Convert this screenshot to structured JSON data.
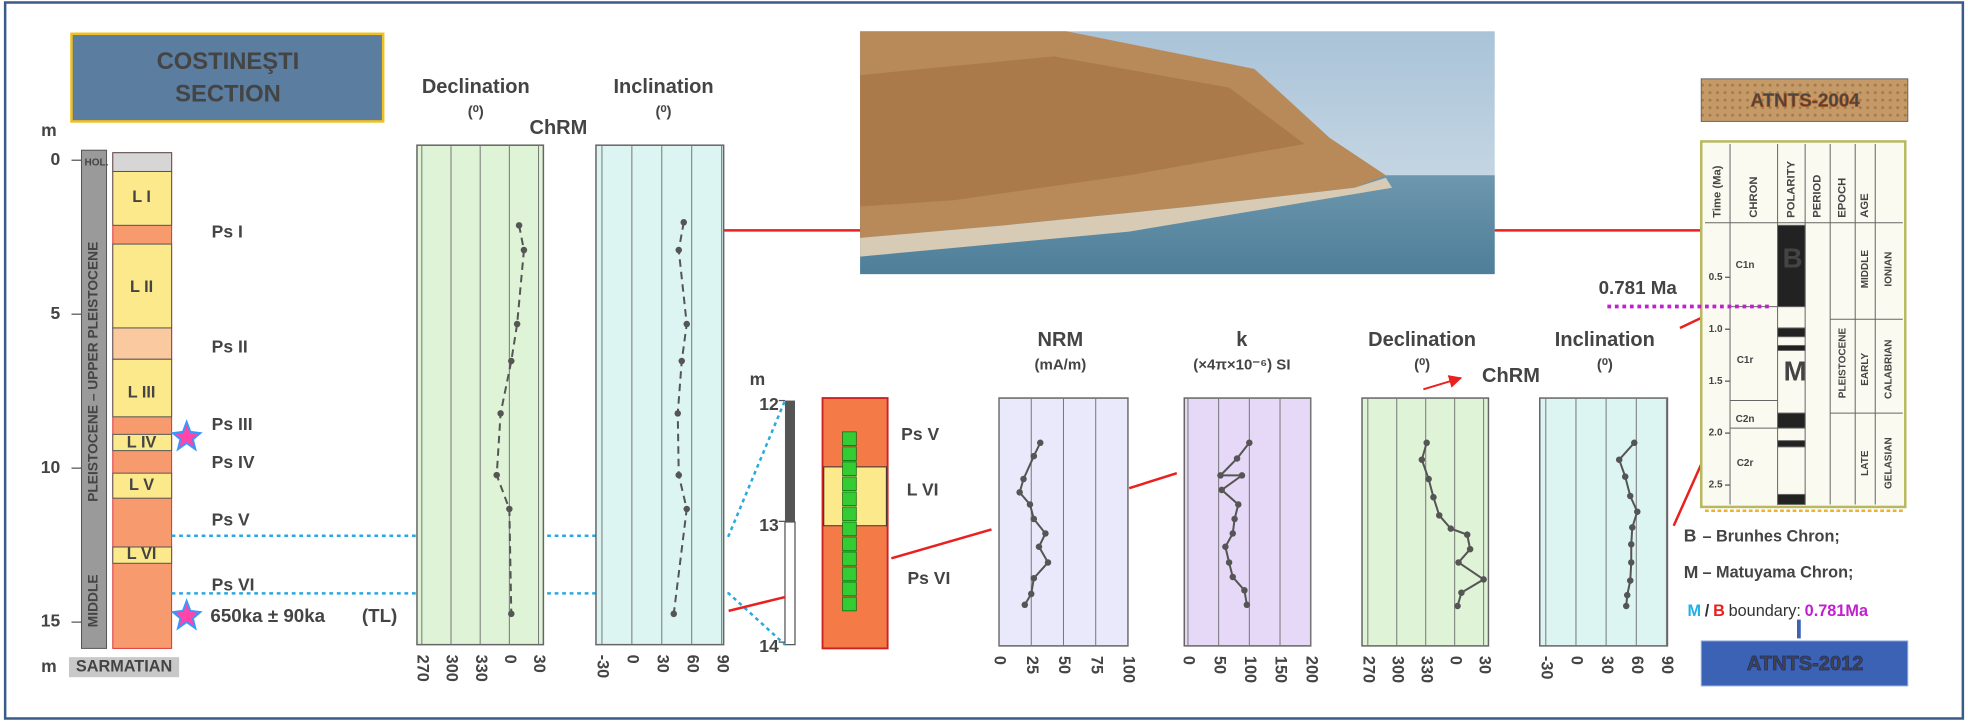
{
  "section": {
    "title": [
      "COSTINEŞTI",
      "SECTION"
    ],
    "depth_unit": "m",
    "depth_ticks": [
      0,
      5,
      10,
      15
    ],
    "epochs": [
      "HOL.",
      "MIDDLE",
      "PLEISTOCENE – UPPER PLEISTOCENE"
    ],
    "layers": [
      "L I",
      "L II",
      "L III",
      "L IV",
      "L V",
      "L VI"
    ],
    "paleosols": [
      "Ps I",
      "Ps II",
      "Ps III",
      "Ps IV",
      "Ps V",
      "Ps VI"
    ],
    "base": "SARMATIAN",
    "age": "650ka ± 90ka",
    "age_method": "(TL)"
  },
  "detail": {
    "depth_unit": "m",
    "depth_ticks": [
      12,
      13,
      14
    ],
    "labels": [
      "Ps V",
      "L VI",
      "Ps VI"
    ]
  },
  "chart_data": [
    {
      "type": "line",
      "title": "Declination",
      "subtitle": "(⁰)",
      "annotation": "ChRM",
      "background": "#dff3d6",
      "color": "#555",
      "line_style": "dashed",
      "values": [
        10,
        15,
        8,
        2,
        -9,
        -13,
        0,
        2
      ],
      "depth": [
        2.1,
        2.9,
        5.3,
        6.5,
        8.2,
        10.2,
        11.3,
        14.7
      ],
      "xlim": [
        -95,
        35
      ],
      "xticks": [
        {
          "value": -90,
          "label": "270"
        },
        {
          "value": -60,
          "label": "300"
        },
        {
          "value": -30,
          "label": "330"
        },
        0,
        30
      ],
      "ylim": [
        -0.5,
        15.7
      ]
    },
    {
      "type": "line",
      "title": "Inclination",
      "subtitle": "(⁰)",
      "background": "#dcf5f3",
      "color": "#555",
      "line_style": "dashed",
      "values": [
        52,
        47,
        55,
        50,
        46,
        47,
        55,
        42
      ],
      "depth": [
        2.0,
        2.9,
        5.3,
        6.5,
        8.2,
        10.2,
        11.3,
        14.7
      ],
      "xlim": [
        -36,
        92
      ],
      "xticks": [
        -30,
        0,
        30,
        60,
        90
      ],
      "ylim": [
        -0.5,
        15.7
      ]
    },
    {
      "type": "line",
      "title": "NRM",
      "subtitle": "(mA/m)",
      "background": "#eae8fb",
      "color": "#555",
      "line_style": "solid",
      "values": [
        32,
        27,
        19,
        16,
        24,
        27,
        36,
        31,
        38,
        27,
        25,
        20
      ],
      "depth": [
        12.35,
        12.46,
        12.65,
        12.76,
        12.86,
        12.98,
        13.1,
        13.21,
        13.34,
        13.47,
        13.6,
        13.69
      ],
      "xlim": [
        0,
        100
      ],
      "xticks": [
        0,
        25,
        50,
        75,
        100
      ],
      "ylim": [
        11.98,
        14.03
      ]
    },
    {
      "type": "line",
      "title": "k",
      "subtitle": "(×4π×10⁻⁶) SI",
      "background": "#e6d8f7",
      "color": "#555",
      "line_style": "solid",
      "values": [
        100,
        80,
        53,
        88,
        55,
        82,
        76,
        73,
        61,
        67,
        73,
        92,
        96
      ],
      "depth": [
        12.35,
        12.48,
        12.62,
        12.62,
        12.74,
        12.86,
        12.98,
        13.1,
        13.21,
        13.34,
        13.46,
        13.57,
        13.69
      ],
      "xlim": [
        -6,
        200
      ],
      "xticks": [
        0,
        50,
        100,
        150,
        200
      ],
      "ylim": [
        11.98,
        14.03
      ]
    },
    {
      "type": "line",
      "title": "Declination",
      "subtitle": "(⁰)",
      "annotation": "ChRM",
      "background": "#dff3d6",
      "color": "#555",
      "line_style": "solid",
      "values": [
        -29,
        -34,
        -27,
        -22,
        -16,
        -4,
        13,
        16,
        4,
        30,
        7,
        3
      ],
      "depth": [
        12.35,
        12.49,
        12.65,
        12.8,
        12.95,
        13.06,
        13.11,
        13.23,
        13.34,
        13.48,
        13.59,
        13.7
      ],
      "xlim": [
        -96,
        35
      ],
      "xticks": [
        {
          "value": -90,
          "label": "270"
        },
        {
          "value": -60,
          "label": "300"
        },
        {
          "value": -30,
          "label": "330"
        },
        0,
        30
      ],
      "ylim": [
        11.98,
        14.03
      ]
    },
    {
      "type": "line",
      "title": "Inclination",
      "subtitle": "(⁰)",
      "background": "#dcf5f3",
      "color": "#555",
      "line_style": "solid",
      "values": [
        58,
        43,
        49,
        54,
        61,
        56,
        55,
        55,
        54,
        51,
        50
      ],
      "depth": [
        12.35,
        12.49,
        12.63,
        12.79,
        12.92,
        13.05,
        13.19,
        13.34,
        13.49,
        13.61,
        13.7
      ],
      "xlim": [
        -36,
        91
      ],
      "xticks": [
        -30,
        0,
        30,
        60,
        90
      ],
      "ylim": [
        11.98,
        14.03
      ]
    }
  ],
  "timescale": {
    "title_top": "ATNTS-2004",
    "title_bottom": "ATNTS-2012",
    "headers": [
      "Time (Ma)",
      "CHRON",
      "POLARITY",
      "PERIOD",
      "EPOCH",
      "AGE"
    ],
    "time_ticks": [
      0.5,
      {
        "value": 1,
        "label": "1.0"
      },
      1.5,
      {
        "value": 2,
        "label": "2.0"
      },
      2.5
    ],
    "chrons": [
      "C1n",
      "C1r",
      "C2n",
      "C2r"
    ],
    "period": "PLEISTOCENE",
    "epochs": [
      "MIDDLE",
      "EARLY",
      "LATE"
    ],
    "ages": [
      "IONIAN",
      "CALABRIAN",
      "GELASIAN"
    ],
    "markers": [
      "B",
      "M"
    ],
    "boundary": 0.781,
    "boundary_label": "0.781 Ma"
  },
  "legend": [
    {
      "key": "B",
      "text": "– Brunhes Chron;"
    },
    {
      "key": "M",
      "text": "– Matuyama Chron;"
    },
    {
      "keys": [
        "M",
        "/",
        "B"
      ],
      "text": "boundary:",
      "note": "0.781Ma"
    }
  ]
}
